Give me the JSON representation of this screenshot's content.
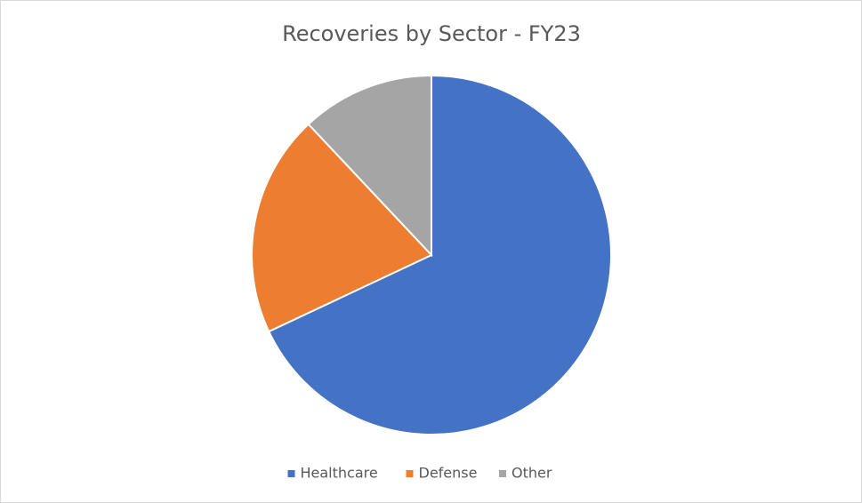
{
  "chart_data": {
    "type": "pie",
    "title": "Recoveries by Sector - FY23",
    "categories": [
      "Healthcare",
      "Defense",
      "Other"
    ],
    "values": [
      68,
      20,
      12
    ],
    "colors": [
      "#4472c4",
      "#ed7d31",
      "#a5a5a5"
    ],
    "legend": "bottom"
  }
}
